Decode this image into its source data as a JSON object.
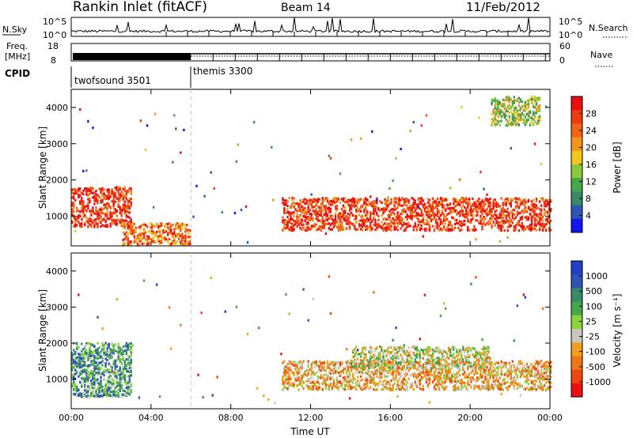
{
  "header": {
    "station": "Rankin Inlet (fitACF)",
    "beam": "Beam 14",
    "date": "11/Feb/2012"
  },
  "status_panels": {
    "nsky_label": "N.Sky",
    "nsky_ticks": [
      "10^5",
      "10^0"
    ],
    "nsearch_label": "N.Search",
    "nsearch_ticks": [
      "10^5",
      "10^0"
    ],
    "freq_label_1": "Freq.",
    "freq_label_2": "[MHz]",
    "freq_ticks": [
      "18",
      "8"
    ],
    "nave_label": "Nave",
    "nave_ticks": [
      "60",
      "0"
    ],
    "cpid_label": "CPID",
    "cpid_segments": [
      {
        "name": "twofsound 3501",
        "start_hour": 0,
        "end_hour": 6
      },
      {
        "name": "themis 3300",
        "start_hour": 6,
        "end_hour": 24
      }
    ]
  },
  "colors": {
    "power_scale": [
      "#1414f0",
      "#2d55b4",
      "#3a8a68",
      "#46a84a",
      "#8cc83c",
      "#f0c81e",
      "#f0961e",
      "#f06414",
      "#ee3c10",
      "#e81010"
    ],
    "velocity_scale": [
      "#2040c8",
      "#2d55b4",
      "#3a8a68",
      "#46a84a",
      "#8cd23c",
      "#c8c8c0",
      "#f0a01e",
      "#f07814",
      "#ee4810",
      "#e81010"
    ]
  },
  "chart_data": [
    {
      "type": "heatmap",
      "name": "power",
      "ylabel": "Slant Range [km]",
      "xlabel": "",
      "colorbar_label": "Power [dB]",
      "colorbar_ticks": [
        "28",
        "24",
        "20",
        "16",
        "12",
        "8",
        "4"
      ],
      "colorbar_range": [
        0,
        30
      ],
      "xlim": [
        0,
        24
      ],
      "ylim": [
        180,
        4500
      ],
      "yticks": [
        "1000",
        "2000",
        "3000",
        "4000"
      ],
      "xticks": [
        "00:00",
        "04:00",
        "08:00",
        "12:00",
        "16:00",
        "20:00",
        "00:00"
      ],
      "features": [
        {
          "time_range": [
            0.0,
            3.0
          ],
          "range_km": [
            700,
            1800
          ],
          "typical_value_dB": 26
        },
        {
          "time_range": [
            2.5,
            6.0
          ],
          "range_km": [
            200,
            800
          ],
          "typical_value_dB": 22
        },
        {
          "time_range": [
            10.5,
            24.0
          ],
          "range_km": [
            600,
            1500
          ],
          "typical_value_dB": 26
        },
        {
          "time_range": [
            21.0,
            23.5
          ],
          "range_km": [
            3500,
            4300
          ],
          "typical_value_dB": 14
        }
      ]
    },
    {
      "type": "heatmap",
      "name": "velocity",
      "ylabel": "Slant Range [km]",
      "xlabel": "Time UT",
      "colorbar_label": "Velocity [m s⁻¹]",
      "colorbar_ticks": [
        "1000",
        "500",
        "100",
        "25",
        "-25",
        "-100",
        "-500",
        "-1000"
      ],
      "colorbar_range": [
        -1000,
        1000
      ],
      "xlim": [
        0,
        24
      ],
      "ylim": [
        180,
        4500
      ],
      "yticks": [
        "1000",
        "2000",
        "3000",
        "4000"
      ],
      "xticks": [
        "00:00",
        "04:00",
        "08:00",
        "12:00",
        "16:00",
        "20:00",
        "00:00"
      ],
      "features": [
        {
          "time_range": [
            0.0,
            3.0
          ],
          "range_km": [
            500,
            2000
          ],
          "typical_value_ms": 400
        },
        {
          "time_range": [
            10.5,
            24.0
          ],
          "range_km": [
            700,
            1500
          ],
          "typical_value_ms": -300
        },
        {
          "time_range": [
            14.0,
            21.0
          ],
          "range_km": [
            1300,
            1900
          ],
          "typical_value_ms": 0
        }
      ]
    }
  ]
}
